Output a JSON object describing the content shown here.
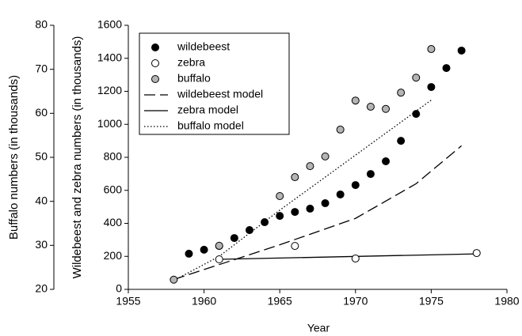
{
  "chart_data": {
    "type": "scatter",
    "xlabel": "Year",
    "ylabel": "Wildebeest and zebra numbers (in thousands)",
    "y2label": "Buffalo numbers (in thousands)",
    "xlim": [
      1955,
      1980
    ],
    "xticks": [
      1955,
      1960,
      1965,
      1970,
      1975,
      1980
    ],
    "ylim": [
      0,
      1600
    ],
    "yticks": [
      0,
      200,
      400,
      600,
      800,
      1000,
      1200,
      1400,
      1600
    ],
    "y2lim": [
      20,
      80
    ],
    "y2ticks": [
      20,
      30,
      40,
      50,
      60,
      70,
      80
    ],
    "legend": "upper left",
    "series": [
      {
        "name": "wildebeest",
        "color": "#000000",
        "marker": "circle",
        "x": [
          1959,
          1960,
          1961,
          1962,
          1963,
          1964,
          1965,
          1966,
          1967,
          1968,
          1969,
          1970,
          1971,
          1972,
          1973,
          1974,
          1975,
          1976,
          1977
        ],
        "values": [
          216,
          240,
          263,
          311,
          359,
          407,
          445,
          469,
          489,
          522,
          575,
          632,
          699,
          776,
          900,
          1063,
          1226,
          1341,
          1447
        ]
      },
      {
        "name": "zebra",
        "color": "#ffffff",
        "marker": "circle",
        "x": [
          1961,
          1966,
          1970,
          1978
        ],
        "values": [
          182,
          263,
          187,
          220
        ]
      },
      {
        "name": "buffalo",
        "color": "#b4b4b4",
        "marker": "circle",
        "axis": "y2",
        "x": [
          1958,
          1961,
          1965,
          1966,
          1967,
          1968,
          1969,
          1970,
          1971,
          1972,
          1973,
          1974,
          1975
        ],
        "values": [
          22.2,
          29.9,
          41.2,
          45.5,
          48.0,
          50.2,
          56.3,
          62.9,
          61.5,
          61.0,
          64.7,
          68.1,
          74.6
        ]
      },
      {
        "name": "wildebeest model",
        "color": "#000000",
        "line": "dashed",
        "x": [
          1958,
          1961,
          1965,
          1970,
          1974,
          1977
        ],
        "values": [
          60,
          150,
          270,
          430,
          640,
          870
        ]
      },
      {
        "name": "zebra model",
        "color": "#000000",
        "line": "solid",
        "x": [
          1961,
          1978
        ],
        "values": [
          182,
          215
        ]
      },
      {
        "name": "buffalo model",
        "color": "#000000",
        "line": "dotted",
        "axis": "y2",
        "x": [
          1958,
          1961,
          1965,
          1970,
          1975
        ],
        "values": [
          22,
          27.5,
          38,
          50.5,
          63
        ]
      }
    ]
  }
}
